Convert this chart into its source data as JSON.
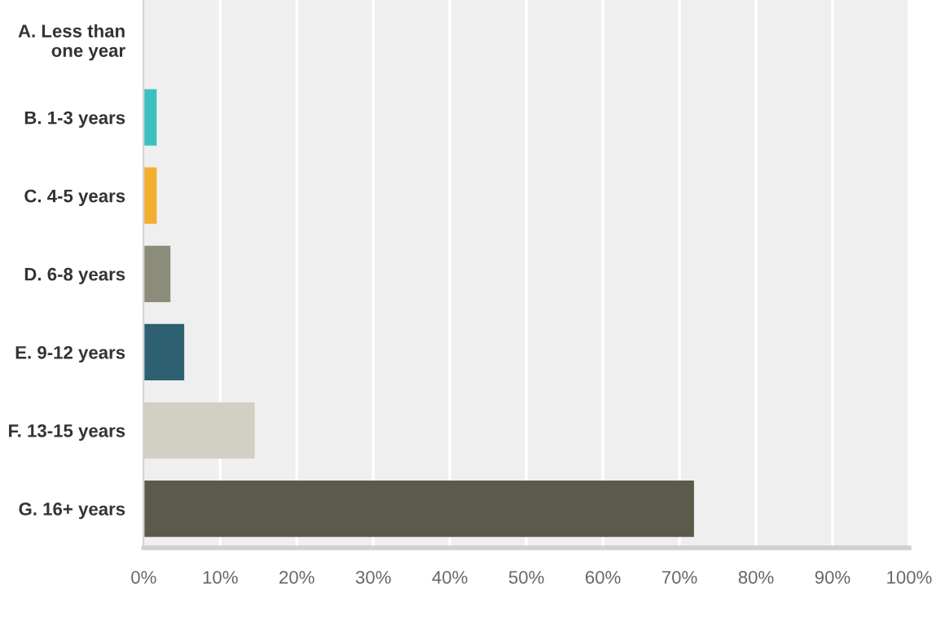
{
  "chart_data": {
    "type": "bar",
    "orientation": "horizontal",
    "categories": [
      "A. Less than\none year",
      "B. 1-3 years",
      "C. 4-5 years",
      "D. 6-8 years",
      "E. 9-12 years",
      "F. 13-15 years",
      "G. 16+ years"
    ],
    "values": [
      0,
      1.7,
      1.7,
      3.5,
      5.3,
      14.5,
      71.9
    ],
    "colors": [
      "#d9d9d9",
      "#3bbfc1",
      "#f2ae2c",
      "#8c8c7a",
      "#2d6071",
      "#d1d0c2",
      "#5c5a4a"
    ],
    "xlim": [
      0,
      100
    ],
    "xticks": [
      {
        "value": 0,
        "label": "0%"
      },
      {
        "value": 10,
        "label": "10%"
      },
      {
        "value": 20,
        "label": "20%"
      },
      {
        "value": 30,
        "label": "30%"
      },
      {
        "value": 40,
        "label": "40%"
      },
      {
        "value": 50,
        "label": "50%"
      },
      {
        "value": 60,
        "label": "60%"
      },
      {
        "value": 70,
        "label": "70%"
      },
      {
        "value": 80,
        "label": "80%"
      },
      {
        "value": 90,
        "label": "90%"
      },
      {
        "value": 100,
        "label": "100%"
      }
    ],
    "grid": "x"
  }
}
